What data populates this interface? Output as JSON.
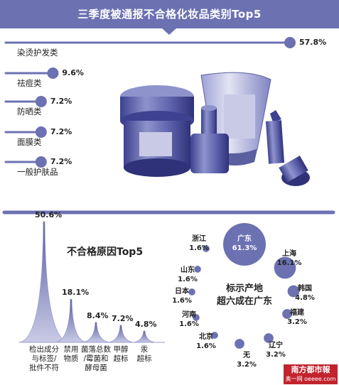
{
  "chart_data": [
    {
      "type": "bar",
      "title": "三季度被通报不合格化妆品类别Top5",
      "categories": [
        "染烫护发类",
        "祛痘类",
        "防晒类",
        "面膜类",
        "一般护肤品"
      ],
      "values": [
        57.8,
        9.6,
        7.2,
        7.2,
        7.2
      ],
      "value_labels": [
        "57.8%",
        "9.6%",
        "7.2%",
        "7.2%",
        "7.2%"
      ],
      "unit": "%",
      "xlim": [
        0,
        57.8
      ],
      "orientation": "horizontal",
      "colors": {
        "bar": "#6c71b2",
        "title_bg": "#6c71b2"
      }
    },
    {
      "type": "area",
      "title": "不合格原因Top5",
      "categories": [
        "检出成分\n与标签/\n批件不符",
        "禁用\n物质",
        "菌落总数\n/霉菌和\n酵母菌",
        "甲醇\n超标",
        "汞\n超标"
      ],
      "values": [
        50.6,
        18.1,
        8.4,
        7.2,
        4.8
      ],
      "value_labels": [
        "50.6%",
        "18.1%",
        "8.4%",
        "7.2%",
        "4.8%"
      ],
      "unit": "%",
      "colors": {
        "peak": "#5a5fa0",
        "light": "#c9cbe6"
      }
    },
    {
      "type": "bubble",
      "title": "标示产地\n超六成在广东",
      "items": [
        {
          "name": "广东",
          "value": 61.3,
          "label": "广东\n61.3%"
        },
        {
          "name": "上海",
          "value": 16.1,
          "label": "上海\n16.1%"
        },
        {
          "name": "韩国",
          "value": 4.8,
          "label": "韩国\n4.8%"
        },
        {
          "name": "福建",
          "value": 3.2,
          "label": "福建\n3.2%"
        },
        {
          "name": "辽宁",
          "value": 3.2,
          "label": "辽宁\n3.2%"
        },
        {
          "name": "无",
          "value": 3.2,
          "label": "无\n3.2%"
        },
        {
          "name": "北京",
          "value": 1.6,
          "label": "北京\n1.6%"
        },
        {
          "name": "河南",
          "value": 1.6,
          "label": "河南\n1.6%"
        },
        {
          "name": "日本",
          "value": 1.6,
          "label": "日本\n1.6%"
        },
        {
          "name": "山东",
          "value": 1.6,
          "label": "山东\n1.6%"
        },
        {
          "name": "浙江",
          "value": 1.6,
          "label": "浙江\n1.6%"
        }
      ],
      "unit": "%",
      "colors": {
        "bubble": "#6c71b2",
        "bubble_text": "#ffffff"
      }
    }
  ],
  "logo": {
    "text": "南方都市報",
    "subtext": "奥一网 oeeee.com"
  }
}
